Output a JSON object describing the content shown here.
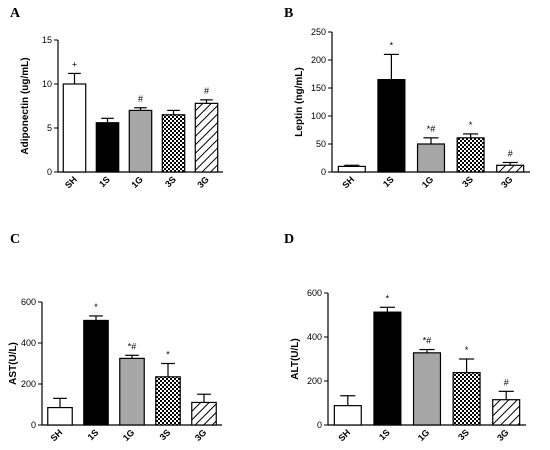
{
  "chart_data": [
    {
      "panel": "A",
      "type": "bar",
      "ylabel": "Adiponectin (ug/mL)",
      "ylim": [
        0,
        15
      ],
      "yticks": [
        0,
        5,
        10,
        15
      ],
      "categories": [
        "SH",
        "1S",
        "1G",
        "3S",
        "3G"
      ],
      "values": [
        10,
        5.6,
        7.0,
        6.5,
        7.8
      ],
      "errors": [
        1.2,
        0.5,
        0.3,
        0.5,
        0.4
      ],
      "annotations": [
        "+",
        "",
        "#",
        "",
        "#"
      ],
      "patterns": [
        "white",
        "black",
        "gray",
        "check",
        "hatch"
      ]
    },
    {
      "panel": "B",
      "type": "bar",
      "ylabel": "Leptin (ng/mL)",
      "ylim": [
        0,
        250
      ],
      "yticks": [
        0,
        50,
        100,
        150,
        200,
        250
      ],
      "categories": [
        "SH",
        "1S",
        "1G",
        "3S",
        "3G"
      ],
      "values": [
        10,
        165,
        50,
        61,
        12
      ],
      "errors": [
        2,
        45,
        11,
        7,
        5
      ],
      "annotations": [
        "",
        "*",
        "*#",
        "*",
        "#"
      ],
      "patterns": [
        "white",
        "black",
        "gray",
        "check",
        "hatch"
      ]
    },
    {
      "panel": "C",
      "type": "bar",
      "ylabel": "AST(U/L)",
      "ylim": [
        0,
        600
      ],
      "yticks": [
        0,
        200,
        400,
        600
      ],
      "categories": [
        "SH",
        "1S",
        "1G",
        "3S",
        "3G"
      ],
      "values": [
        85,
        510,
        325,
        235,
        110
      ],
      "errors": [
        45,
        22,
        15,
        65,
        40
      ],
      "annotations": [
        "",
        "*",
        "*#",
        "*",
        ""
      ],
      "patterns": [
        "white",
        "black",
        "gray",
        "check",
        "hatch"
      ]
    },
    {
      "panel": "D",
      "type": "bar",
      "ylabel": "ALT(U/L)",
      "ylim": [
        0,
        600
      ],
      "yticks": [
        0,
        200,
        400,
        600
      ],
      "categories": [
        "SH",
        "1S",
        "1G",
        "3S",
        "3G"
      ],
      "values": [
        88,
        513,
        328,
        238,
        115
      ],
      "errors": [
        45,
        22,
        15,
        62,
        38
      ],
      "annotations": [
        "",
        "*",
        "*#",
        "*",
        "#"
      ],
      "patterns": [
        "white",
        "black",
        "gray",
        "check",
        "hatch"
      ]
    }
  ]
}
